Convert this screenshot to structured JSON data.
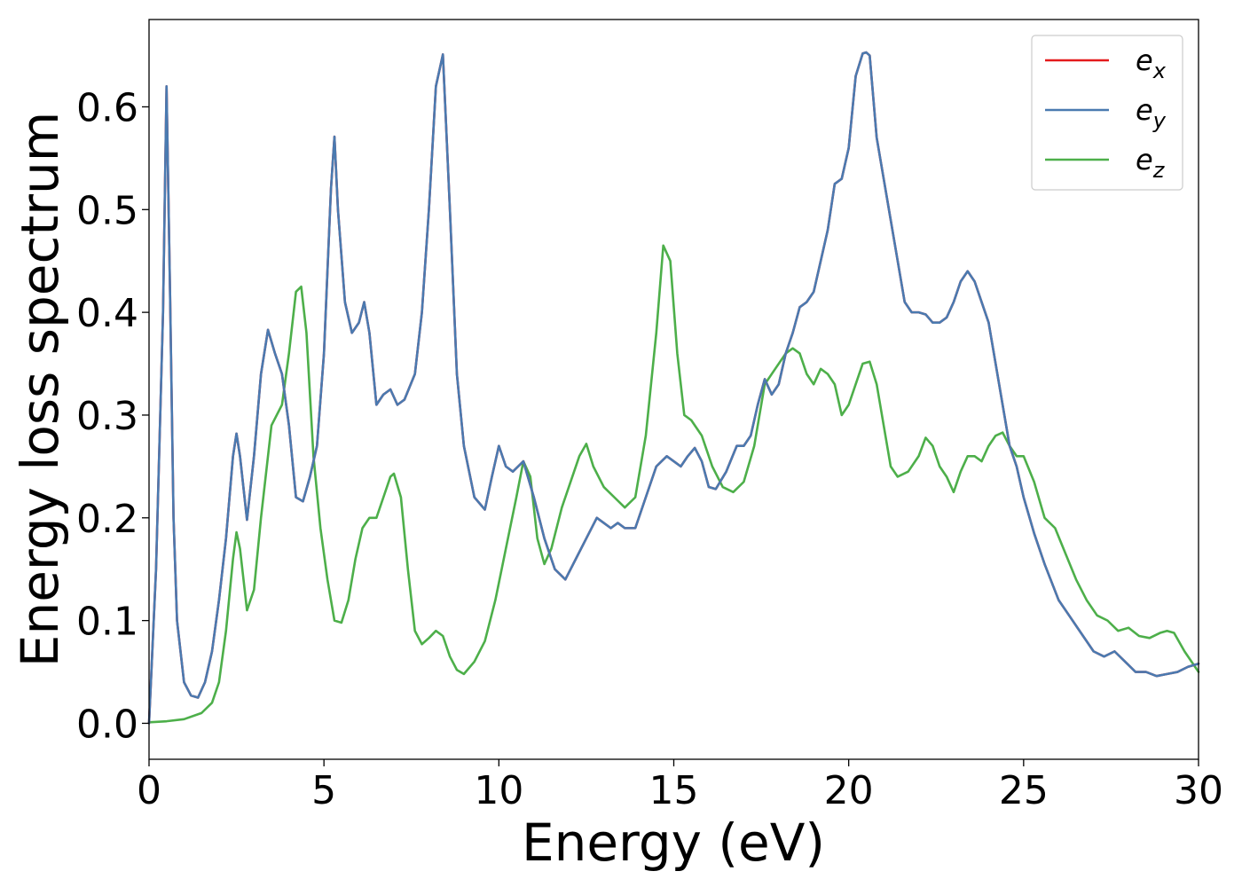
{
  "chart_data": {
    "type": "line",
    "title": "",
    "xlabel": "Energy (eV)",
    "ylabel": "Energy loss spectrum",
    "xlim": [
      0,
      30
    ],
    "ylim": [
      -0.035,
      0.685
    ],
    "xticks": [
      0,
      5,
      10,
      15,
      20,
      25,
      30
    ],
    "yticks": [
      0.0,
      0.1,
      0.2,
      0.3,
      0.4,
      0.5,
      0.6
    ],
    "xtick_labels": [
      "0",
      "5",
      "10",
      "15",
      "20",
      "25",
      "30"
    ],
    "ytick_labels": [
      "0.0",
      "0.1",
      "0.2",
      "0.3",
      "0.4",
      "0.5",
      "0.6"
    ],
    "grid": false,
    "legend": "top-right",
    "series": [
      {
        "name": "e_x",
        "label_base": "e",
        "label_sub": "x",
        "color": "#e41a1c",
        "x": [
          0,
          0.2,
          0.4,
          0.5,
          0.6,
          0.7,
          0.8,
          1.0,
          1.2,
          1.4,
          1.6,
          1.8,
          2.0,
          2.2,
          2.4,
          2.5,
          2.6,
          2.8,
          3.0,
          3.2,
          3.4,
          3.6,
          3.8,
          4.0,
          4.2,
          4.4,
          4.6,
          4.8,
          5.0,
          5.2,
          5.3,
          5.4,
          5.6,
          5.8,
          6.0,
          6.15,
          6.3,
          6.5,
          6.7,
          6.9,
          7.1,
          7.3,
          7.6,
          7.8,
          8.0,
          8.2,
          8.4,
          8.6,
          8.8,
          9.0,
          9.3,
          9.6,
          9.8,
          10.0,
          10.2,
          10.4,
          10.7,
          11.0,
          11.3,
          11.6,
          11.9,
          12.2,
          12.5,
          12.8,
          13.0,
          13.2,
          13.4,
          13.6,
          13.9,
          14.2,
          14.5,
          14.8,
          15.0,
          15.2,
          15.4,
          15.6,
          15.8,
          16.0,
          16.2,
          16.5,
          16.8,
          17.0,
          17.2,
          17.4,
          17.6,
          17.8,
          18.0,
          18.2,
          18.4,
          18.6,
          18.8,
          19.0,
          19.2,
          19.4,
          19.6,
          19.8,
          20.0,
          20.2,
          20.4,
          20.5,
          20.6,
          20.8,
          21.0,
          21.2,
          21.4,
          21.6,
          21.8,
          22.0,
          22.2,
          22.4,
          22.6,
          22.8,
          23.0,
          23.2,
          23.4,
          23.6,
          23.8,
          24.0,
          24.2,
          24.4,
          24.6,
          24.8,
          25.0,
          25.3,
          25.6,
          26.0,
          26.3,
          26.6,
          27.0,
          27.3,
          27.6,
          27.9,
          28.2,
          28.5,
          28.8,
          29.1,
          29.4,
          29.7,
          30.0
        ],
        "y": [
          0.0,
          0.15,
          0.4,
          0.62,
          0.42,
          0.2,
          0.1,
          0.04,
          0.027,
          0.025,
          0.04,
          0.07,
          0.12,
          0.18,
          0.26,
          0.282,
          0.26,
          0.198,
          0.26,
          0.34,
          0.383,
          0.36,
          0.34,
          0.29,
          0.22,
          0.216,
          0.24,
          0.27,
          0.36,
          0.52,
          0.571,
          0.5,
          0.41,
          0.38,
          0.39,
          0.41,
          0.38,
          0.31,
          0.32,
          0.325,
          0.31,
          0.315,
          0.34,
          0.4,
          0.5,
          0.62,
          0.651,
          0.5,
          0.34,
          0.27,
          0.22,
          0.208,
          0.24,
          0.27,
          0.25,
          0.245,
          0.255,
          0.22,
          0.18,
          0.15,
          0.14,
          0.16,
          0.18,
          0.2,
          0.195,
          0.19,
          0.195,
          0.19,
          0.19,
          0.22,
          0.25,
          0.26,
          0.255,
          0.25,
          0.26,
          0.268,
          0.255,
          0.23,
          0.228,
          0.245,
          0.27,
          0.27,
          0.28,
          0.31,
          0.335,
          0.32,
          0.33,
          0.36,
          0.38,
          0.405,
          0.41,
          0.42,
          0.45,
          0.48,
          0.525,
          0.53,
          0.56,
          0.63,
          0.652,
          0.653,
          0.65,
          0.57,
          0.53,
          0.49,
          0.45,
          0.41,
          0.4,
          0.4,
          0.398,
          0.39,
          0.39,
          0.395,
          0.41,
          0.43,
          0.44,
          0.43,
          0.41,
          0.39,
          0.35,
          0.31,
          0.27,
          0.25,
          0.22,
          0.185,
          0.155,
          0.12,
          0.105,
          0.09,
          0.07,
          0.065,
          0.07,
          0.06,
          0.05,
          0.05,
          0.046,
          0.048,
          0.05,
          0.055,
          0.058
        ]
      },
      {
        "name": "e_y",
        "label_base": "e",
        "label_sub": "y",
        "color": "#4a7ab0",
        "x": [
          0,
          0.2,
          0.4,
          0.5,
          0.6,
          0.7,
          0.8,
          1.0,
          1.2,
          1.4,
          1.6,
          1.8,
          2.0,
          2.2,
          2.4,
          2.5,
          2.6,
          2.8,
          3.0,
          3.2,
          3.4,
          3.6,
          3.8,
          4.0,
          4.2,
          4.4,
          4.6,
          4.8,
          5.0,
          5.2,
          5.3,
          5.4,
          5.6,
          5.8,
          6.0,
          6.15,
          6.3,
          6.5,
          6.7,
          6.9,
          7.1,
          7.3,
          7.6,
          7.8,
          8.0,
          8.2,
          8.4,
          8.6,
          8.8,
          9.0,
          9.3,
          9.6,
          9.8,
          10.0,
          10.2,
          10.4,
          10.7,
          11.0,
          11.3,
          11.6,
          11.9,
          12.2,
          12.5,
          12.8,
          13.0,
          13.2,
          13.4,
          13.6,
          13.9,
          14.2,
          14.5,
          14.8,
          15.0,
          15.2,
          15.4,
          15.6,
          15.8,
          16.0,
          16.2,
          16.5,
          16.8,
          17.0,
          17.2,
          17.4,
          17.6,
          17.8,
          18.0,
          18.2,
          18.4,
          18.6,
          18.8,
          19.0,
          19.2,
          19.4,
          19.6,
          19.8,
          20.0,
          20.2,
          20.4,
          20.5,
          20.6,
          20.8,
          21.0,
          21.2,
          21.4,
          21.6,
          21.8,
          22.0,
          22.2,
          22.4,
          22.6,
          22.8,
          23.0,
          23.2,
          23.4,
          23.6,
          23.8,
          24.0,
          24.2,
          24.4,
          24.6,
          24.8,
          25.0,
          25.3,
          25.6,
          26.0,
          26.3,
          26.6,
          27.0,
          27.3,
          27.6,
          27.9,
          28.2,
          28.5,
          28.8,
          29.1,
          29.4,
          29.7,
          30.0
        ],
        "y": [
          0.0,
          0.15,
          0.4,
          0.62,
          0.42,
          0.2,
          0.1,
          0.04,
          0.027,
          0.025,
          0.04,
          0.07,
          0.12,
          0.18,
          0.26,
          0.282,
          0.26,
          0.198,
          0.26,
          0.34,
          0.383,
          0.36,
          0.34,
          0.29,
          0.22,
          0.216,
          0.24,
          0.27,
          0.36,
          0.52,
          0.571,
          0.5,
          0.41,
          0.38,
          0.39,
          0.41,
          0.38,
          0.31,
          0.32,
          0.325,
          0.31,
          0.315,
          0.34,
          0.4,
          0.5,
          0.62,
          0.651,
          0.5,
          0.34,
          0.27,
          0.22,
          0.208,
          0.24,
          0.27,
          0.25,
          0.245,
          0.255,
          0.22,
          0.18,
          0.15,
          0.14,
          0.16,
          0.18,
          0.2,
          0.195,
          0.19,
          0.195,
          0.19,
          0.19,
          0.22,
          0.25,
          0.26,
          0.255,
          0.25,
          0.26,
          0.268,
          0.255,
          0.23,
          0.228,
          0.245,
          0.27,
          0.27,
          0.28,
          0.31,
          0.335,
          0.32,
          0.33,
          0.36,
          0.38,
          0.405,
          0.41,
          0.42,
          0.45,
          0.48,
          0.525,
          0.53,
          0.56,
          0.63,
          0.652,
          0.653,
          0.65,
          0.57,
          0.53,
          0.49,
          0.45,
          0.41,
          0.4,
          0.4,
          0.398,
          0.39,
          0.39,
          0.395,
          0.41,
          0.43,
          0.44,
          0.43,
          0.41,
          0.39,
          0.35,
          0.31,
          0.27,
          0.25,
          0.22,
          0.185,
          0.155,
          0.12,
          0.105,
          0.09,
          0.07,
          0.065,
          0.07,
          0.06,
          0.05,
          0.05,
          0.046,
          0.048,
          0.05,
          0.055,
          0.058
        ]
      },
      {
        "name": "e_z",
        "label_base": "e",
        "label_sub": "z",
        "color": "#4daf4a",
        "x": [
          0,
          0.5,
          1.0,
          1.5,
          1.8,
          2.0,
          2.2,
          2.4,
          2.5,
          2.6,
          2.8,
          3.0,
          3.2,
          3.5,
          3.8,
          4.0,
          4.2,
          4.35,
          4.5,
          4.7,
          4.9,
          5.1,
          5.3,
          5.5,
          5.7,
          5.9,
          6.1,
          6.3,
          6.5,
          6.7,
          6.9,
          7.0,
          7.2,
          7.4,
          7.6,
          7.8,
          8.0,
          8.2,
          8.4,
          8.6,
          8.8,
          9.0,
          9.3,
          9.6,
          9.9,
          10.2,
          10.5,
          10.7,
          10.9,
          11.1,
          11.3,
          11.5,
          11.8,
          12.1,
          12.3,
          12.5,
          12.7,
          13.0,
          13.3,
          13.6,
          13.9,
          14.2,
          14.5,
          14.7,
          14.9,
          15.1,
          15.3,
          15.5,
          15.8,
          16.1,
          16.4,
          16.7,
          17.0,
          17.3,
          17.6,
          17.9,
          18.2,
          18.4,
          18.6,
          18.8,
          19.0,
          19.2,
          19.4,
          19.6,
          19.8,
          20.0,
          20.2,
          20.4,
          20.6,
          20.8,
          21.0,
          21.2,
          21.4,
          21.7,
          22.0,
          22.2,
          22.4,
          22.6,
          22.8,
          23.0,
          23.2,
          23.4,
          23.6,
          23.8,
          24.0,
          24.2,
          24.4,
          24.6,
          24.8,
          25.0,
          25.3,
          25.6,
          25.9,
          26.2,
          26.5,
          26.8,
          27.1,
          27.4,
          27.7,
          28.0,
          28.3,
          28.6,
          28.9,
          29.1,
          29.3,
          29.6,
          30.0
        ],
        "y": [
          0.001,
          0.002,
          0.004,
          0.01,
          0.02,
          0.04,
          0.09,
          0.16,
          0.186,
          0.17,
          0.11,
          0.13,
          0.2,
          0.29,
          0.31,
          0.36,
          0.42,
          0.425,
          0.38,
          0.26,
          0.19,
          0.14,
          0.1,
          0.098,
          0.12,
          0.16,
          0.19,
          0.2,
          0.2,
          0.22,
          0.24,
          0.243,
          0.22,
          0.15,
          0.09,
          0.077,
          0.083,
          0.09,
          0.085,
          0.065,
          0.052,
          0.048,
          0.06,
          0.08,
          0.12,
          0.17,
          0.22,
          0.255,
          0.24,
          0.18,
          0.155,
          0.17,
          0.21,
          0.24,
          0.26,
          0.272,
          0.25,
          0.23,
          0.22,
          0.21,
          0.22,
          0.28,
          0.38,
          0.465,
          0.45,
          0.36,
          0.3,
          0.295,
          0.28,
          0.25,
          0.23,
          0.225,
          0.235,
          0.27,
          0.33,
          0.345,
          0.36,
          0.365,
          0.36,
          0.34,
          0.33,
          0.345,
          0.34,
          0.33,
          0.3,
          0.31,
          0.33,
          0.35,
          0.352,
          0.33,
          0.29,
          0.25,
          0.24,
          0.245,
          0.26,
          0.278,
          0.27,
          0.25,
          0.24,
          0.225,
          0.245,
          0.26,
          0.26,
          0.255,
          0.27,
          0.28,
          0.283,
          0.27,
          0.26,
          0.26,
          0.235,
          0.2,
          0.19,
          0.165,
          0.14,
          0.12,
          0.105,
          0.1,
          0.09,
          0.093,
          0.085,
          0.083,
          0.088,
          0.09,
          0.088,
          0.07,
          0.05
        ]
      }
    ]
  }
}
